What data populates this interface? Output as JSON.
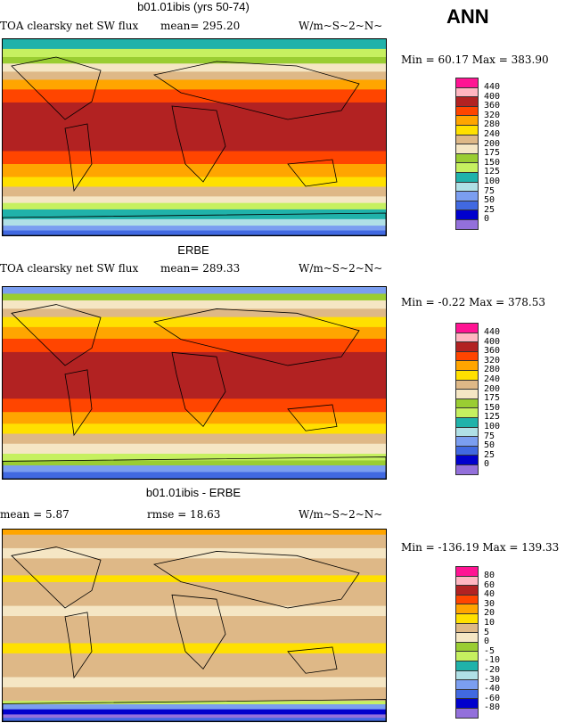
{
  "annotation": "ANN",
  "colors": [
    "#ff1493",
    "#ffb6c1",
    "#b22222",
    "#ff4500",
    "#ffa500",
    "#ffe000",
    "#deb887",
    "#f5e6c4",
    "#9acd32",
    "#c6f060",
    "#20b2aa",
    "#b0e0e6",
    "#7b9ef0",
    "#4169e1",
    "#0000cd",
    "#9370db"
  ],
  "panels": [
    {
      "title": "b01.01ibis (yrs 50-74)",
      "left": "TOA clearsky net SW flux",
      "mean": "mean=  295.20",
      "units": "W/m~S~2~N~",
      "minmax": "Min =  60.17 Max = 383.90",
      "levels": [
        "440",
        "400",
        "360",
        "320",
        "280",
        "240",
        "200",
        "175",
        "150",
        "125",
        "100",
        "75",
        "50",
        "25",
        "0"
      ]
    },
    {
      "title": "ERBE",
      "left": "TOA clearsky net SW flux",
      "mean": "mean=  289.33",
      "units": "W/m~S~2~N~",
      "minmax": "Min =  -0.22 Max = 378.53",
      "levels": [
        "440",
        "400",
        "360",
        "320",
        "280",
        "240",
        "200",
        "175",
        "150",
        "125",
        "100",
        "75",
        "50",
        "25",
        "0"
      ]
    },
    {
      "title": "b01.01ibis - ERBE",
      "left": "mean =    5.87",
      "mean": "rmse =   18.63",
      "units": "W/m~S~2~N~",
      "minmax": "Min = -136.19 Max = 139.33",
      "levels": [
        "80",
        "60",
        "40",
        "30",
        "20",
        "10",
        "5",
        "0",
        "-5",
        "-10",
        "-20",
        "-30",
        "-40",
        "-60",
        "-80"
      ]
    }
  ]
}
